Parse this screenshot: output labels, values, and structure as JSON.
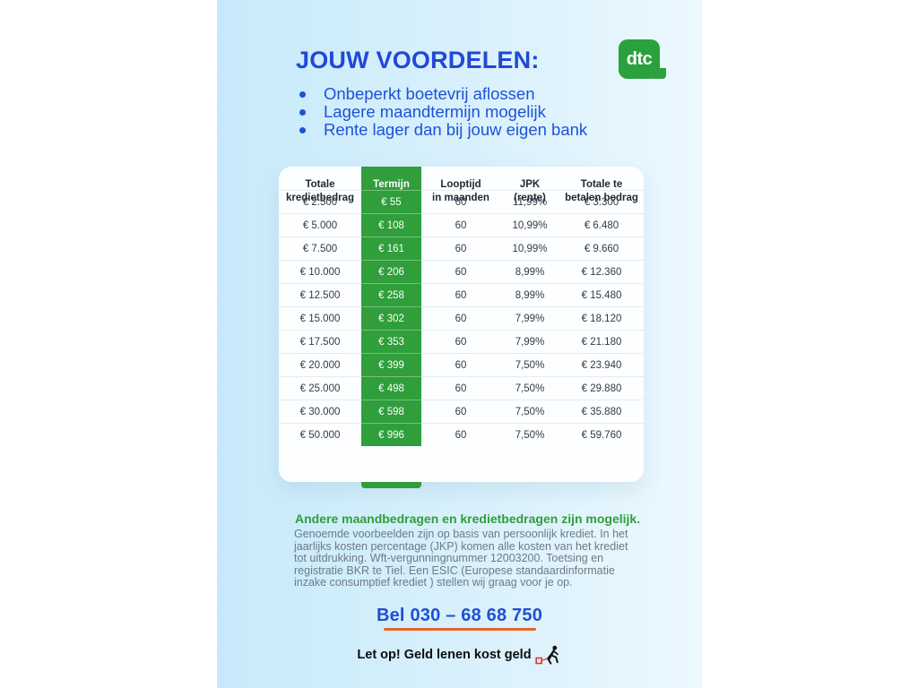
{
  "colors": {
    "accent_blue": "#1d50d5",
    "accent_green": "#2f9e3b",
    "underline_orange": "#e8632b",
    "panel_blue": "#c7eafa"
  },
  "header": {
    "title": "JOUW VOORDELEN:",
    "logo_text": "dtc",
    "bullets": [
      "Onbeperkt boetevrij aflossen",
      "Lagere maandtermijn mogelijk",
      "Rente lager dan bij jouw eigen bank"
    ]
  },
  "table": {
    "headers": [
      "Totale\nkredietbedrag",
      "Termijn\nbedrag",
      "Looptijd\nin maanden",
      "JPK\n(rente)",
      "Totale te\nbetalen bedrag"
    ],
    "highlight_column_index": 1,
    "rows": [
      [
        "€ 2.500",
        "€ 55",
        "60",
        "11,99%",
        "€ 3.300"
      ],
      [
        "€ 5.000",
        "€ 108",
        "60",
        "10,99%",
        "€ 6.480"
      ],
      [
        "€ 7.500",
        "€ 161",
        "60",
        "10,99%",
        "€ 9.660"
      ],
      [
        "€ 10.000",
        "€ 206",
        "60",
        "8,99%",
        "€ 12.360"
      ],
      [
        "€ 12.500",
        "€ 258",
        "60",
        "8,99%",
        "€ 15.480"
      ],
      [
        "€ 15.000",
        "€ 302",
        "60",
        "7,99%",
        "€ 18.120"
      ],
      [
        "€ 17.500",
        "€ 353",
        "60",
        "7,99%",
        "€ 21.180"
      ],
      [
        "€ 20.000",
        "€ 399",
        "60",
        "7,50%",
        "€ 23.940"
      ],
      [
        "€ 25.000",
        "€ 498",
        "60",
        "7,50%",
        "€ 29.880"
      ],
      [
        "€ 30.000",
        "€ 598",
        "60",
        "7,50%",
        "€ 35.880"
      ],
      [
        "€ 50.000",
        "€ 996",
        "60",
        "7,50%",
        "€ 59.760"
      ]
    ]
  },
  "footer": {
    "highlight": "Andere maandbedragen en kredietbedragen zijn mogelijk.",
    "disclaimer": "Genoemde voorbeelden zijn op basis van persoonlijk krediet. In het jaarlijks kosten percentage (JKP) komen alle kosten van het krediet tot uitdrukking. Wft-vergunningnummer 12003200. Toetsing en registratie BKR te Tiel. Een ESIC (Europese standaardinformatie inzake consumptief krediet ) stellen wij graag voor je op.",
    "phone": "Bel 030 – 68 68 750",
    "warning": "Let op! Geld lenen kost geld"
  }
}
